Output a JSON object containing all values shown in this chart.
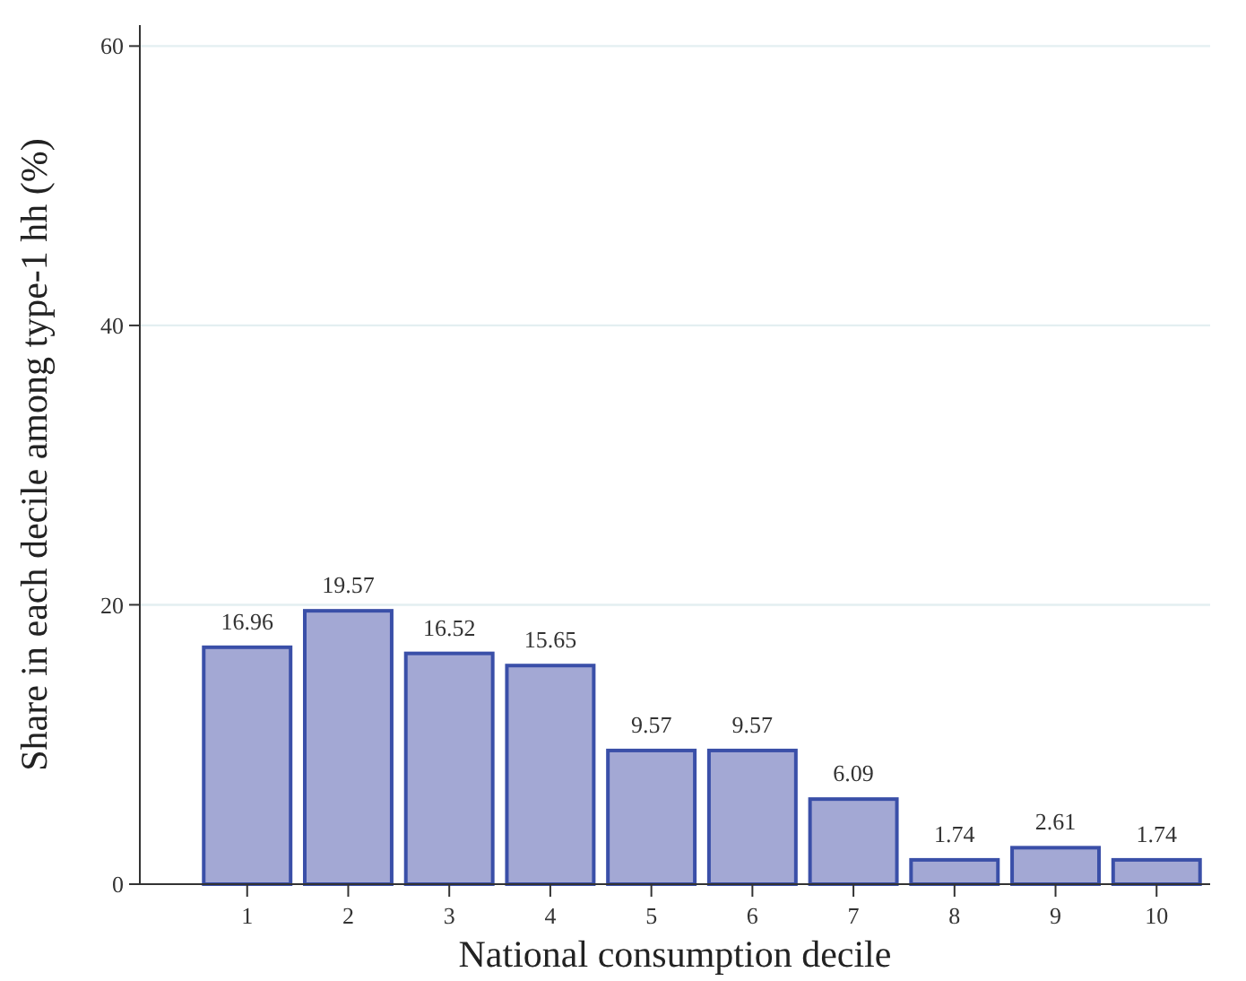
{
  "chart_data": {
    "type": "bar",
    "xlabel": "National consumption decile",
    "ylabel": "Share in each decile among type-1 hh (%)",
    "categories": [
      "1",
      "2",
      "3",
      "4",
      "5",
      "6",
      "7",
      "8",
      "9",
      "10"
    ],
    "values": [
      16.96,
      19.57,
      16.52,
      15.65,
      9.57,
      9.57,
      6.09,
      1.74,
      2.61,
      1.74
    ],
    "color": "#a3a8d4",
    "ylim": [
      0,
      61.5
    ],
    "yticks": [
      0,
      20,
      40,
      60
    ],
    "grid": "y",
    "data_labels": true
  }
}
